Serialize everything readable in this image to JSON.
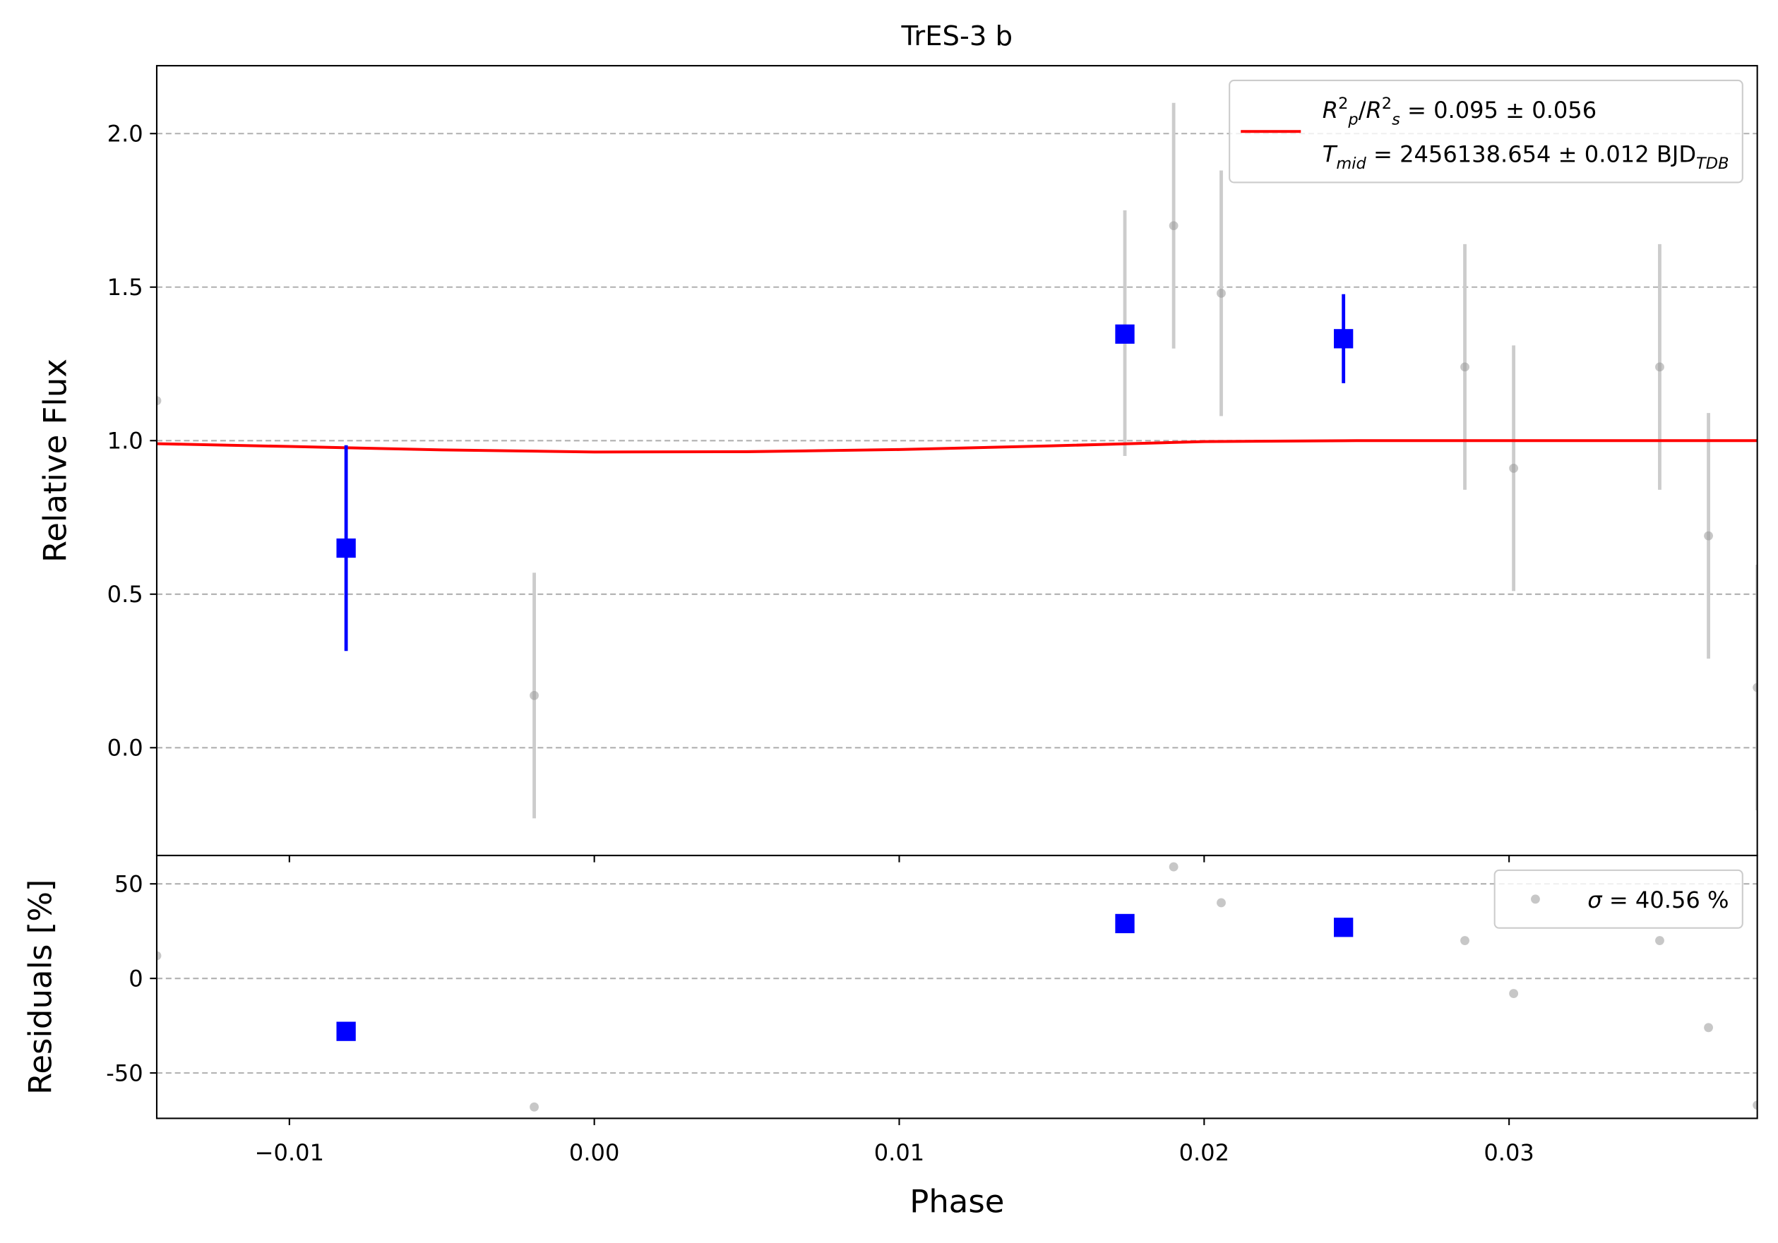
{
  "chart_data": [
    {
      "type": "errorbar",
      "title": "TrES-3 b",
      "ylabel": "Relative Flux",
      "xlim": [
        -0.01435,
        0.03814
      ],
      "ylim": [
        -0.351,
        2.221
      ],
      "yticks": [
        {
          "value": 0,
          "label": "0.0"
        },
        {
          "value": 0.5,
          "label": "0.5"
        },
        {
          "value": 1,
          "label": "1.0"
        },
        {
          "value": 1.5,
          "label": "1.5"
        },
        {
          "value": 2,
          "label": "2.0"
        }
      ],
      "grid": true,
      "legend": "upper right",
      "series": [
        {
          "type": "errorbar",
          "marker": "dot",
          "color": "#999999",
          "x": [
            -0.01435,
            -0.00197,
            0.0174,
            0.019,
            0.02056,
            0.02855,
            0.03015,
            0.03494,
            0.03654,
            0.03814
          ],
          "values": [
            1.13,
            0.17,
            1.35,
            1.7,
            1.48,
            1.24,
            0.91,
            1.24,
            0.69,
            0.196
          ],
          "errors": [
            null,
            0.4,
            0.4,
            0.4,
            0.4,
            0.4,
            0.4,
            0.4,
            0.4,
            0.4
          ]
        },
        {
          "type": "line",
          "color": "#ff0000",
          "name": [
            [
              {
                "text": "R",
                "kind": "i"
              },
              {
                "text": "2",
                "kind": "sup"
              },
              {
                "text": "p",
                "kind": "sub"
              },
              {
                "text": "/",
                "kind": ""
              },
              {
                "text": "R",
                "kind": "i"
              },
              {
                "text": "2",
                "kind": "sup"
              },
              {
                "text": "s",
                "kind": "sub"
              },
              {
                "text": " = 0.095 ± 0.056",
                "kind": ""
              }
            ],
            [
              {
                "text": "T",
                "kind": "i"
              },
              {
                "text": "mid",
                "kind": "sub"
              },
              {
                "text": " = 2456138.654 ± 0.012 BJD",
                "kind": ""
              },
              {
                "text": "TDB",
                "kind": "sub"
              }
            ]
          ],
          "x": [
            -0.01435,
            -0.01,
            -0.005,
            0,
            0.005,
            0.01,
            0.015,
            0.02,
            0.025,
            0.03,
            0.035,
            0.03814
          ],
          "values": [
            0.99,
            0.981,
            0.97,
            0.963,
            0.964,
            0.971,
            0.983,
            0.997,
            1.0,
            1.0,
            1.0,
            1.0
          ]
        },
        {
          "type": "errorbar",
          "marker": "square",
          "color": "#0000ff",
          "x": [
            -0.00814,
            0.0174,
            0.02457
          ],
          "values": [
            0.65,
            1.347,
            1.332
          ],
          "errors": [
            0.335,
            0,
            0.145
          ]
        }
      ]
    },
    {
      "type": "errorbar",
      "ylabel": "Residuals [%]",
      "xlabel": "Phase",
      "xlim": [
        -0.01435,
        0.03814
      ],
      "ylim": [
        -74,
        65
      ],
      "xticks": [
        {
          "value": -0.01,
          "label": "−0.01"
        },
        {
          "value": 0,
          "label": "0.00"
        },
        {
          "value": 0.01,
          "label": "0.01"
        },
        {
          "value": 0.02,
          "label": "0.02"
        },
        {
          "value": 0.03,
          "label": "0.03"
        }
      ],
      "yticks": [
        -50,
        0,
        50
      ],
      "grid": true,
      "legend": "upper right",
      "series": [
        {
          "type": "errorbar",
          "marker": "dot",
          "color": "#999999",
          "name": [
            [
              {
                "text": "σ",
                "kind": "i"
              },
              {
                "text": " = 40.56 %",
                "kind": ""
              }
            ]
          ],
          "x": [
            -0.01435,
            -0.00197,
            0.019,
            0.02056,
            0.02855,
            0.03015,
            0.03494,
            0.03654,
            0.03814
          ],
          "values": [
            12,
            -68,
            59,
            40,
            20,
            -8,
            20,
            -26,
            -67
          ]
        },
        {
          "type": "errorbar",
          "marker": "square",
          "color": "#0000ff",
          "x": [
            -0.00814,
            0.0174,
            0.02457
          ],
          "values": [
            -28,
            29,
            27
          ]
        }
      ]
    }
  ]
}
